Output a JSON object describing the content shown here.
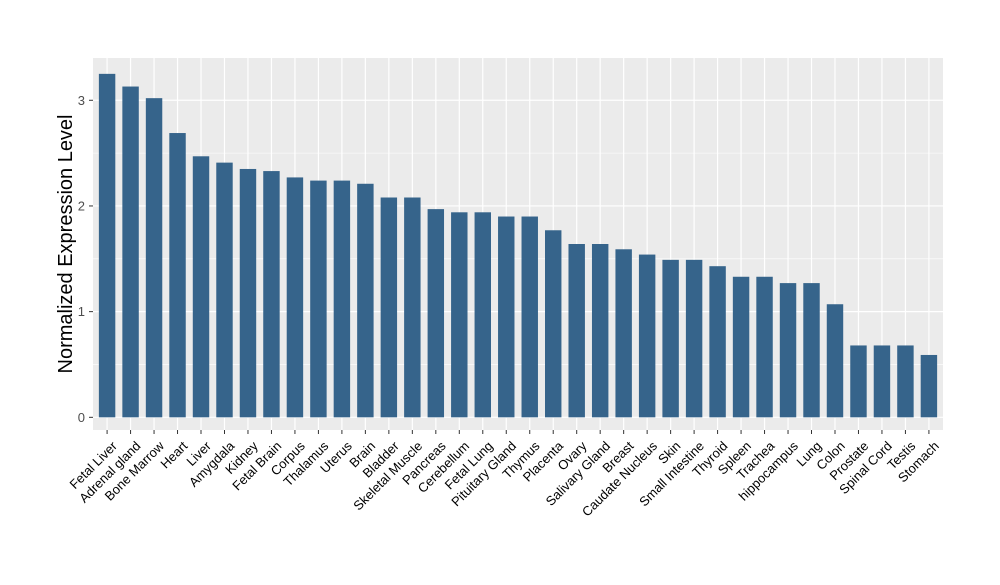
{
  "chart_data": {
    "type": "bar",
    "title": "",
    "xlabel": "",
    "ylabel": "Normalized Expression Level",
    "ylim": [
      -0.12,
      3.4
    ],
    "yticks": [
      0,
      1,
      2,
      3
    ],
    "grid": true,
    "colors": {
      "bar": "#36648B",
      "panel": "#EBEBEB",
      "grid": "#FFFFFF",
      "axis_text": "#4D4D4D",
      "label": "#000000"
    },
    "categories": [
      "Fetal Liver",
      "Adrenal gland",
      "Bone Marrow",
      "Heart",
      "Liver",
      "Amygdala",
      "Kidney",
      "Fetal Brain",
      "Corpus",
      "Thalamus",
      "Uterus",
      "Brain",
      "Bladder",
      "Skeletal Muscle",
      "Pancreas",
      "Cerebellum",
      "Fetal Lung",
      "Pituitary Gland",
      "Thymus",
      "Placenta",
      "Ovary",
      "Salivary Gland",
      "Breast",
      "Caudate Nucleus",
      "Skin",
      "Small Intestine",
      "Thyroid",
      "Spleen",
      "Trachea",
      "hippocampus",
      "Lung",
      "Colon",
      "Prostate",
      "Spinal Cord",
      "Testis",
      "Stomach"
    ],
    "values": [
      3.25,
      3.13,
      3.02,
      2.69,
      2.47,
      2.41,
      2.35,
      2.33,
      2.27,
      2.24,
      2.24,
      2.21,
      2.08,
      2.08,
      1.97,
      1.94,
      1.94,
      1.9,
      1.9,
      1.77,
      1.64,
      1.64,
      1.59,
      1.54,
      1.49,
      1.49,
      1.43,
      1.33,
      1.33,
      1.27,
      1.27,
      1.07,
      0.68,
      0.68,
      0.68,
      0.59
    ]
  }
}
